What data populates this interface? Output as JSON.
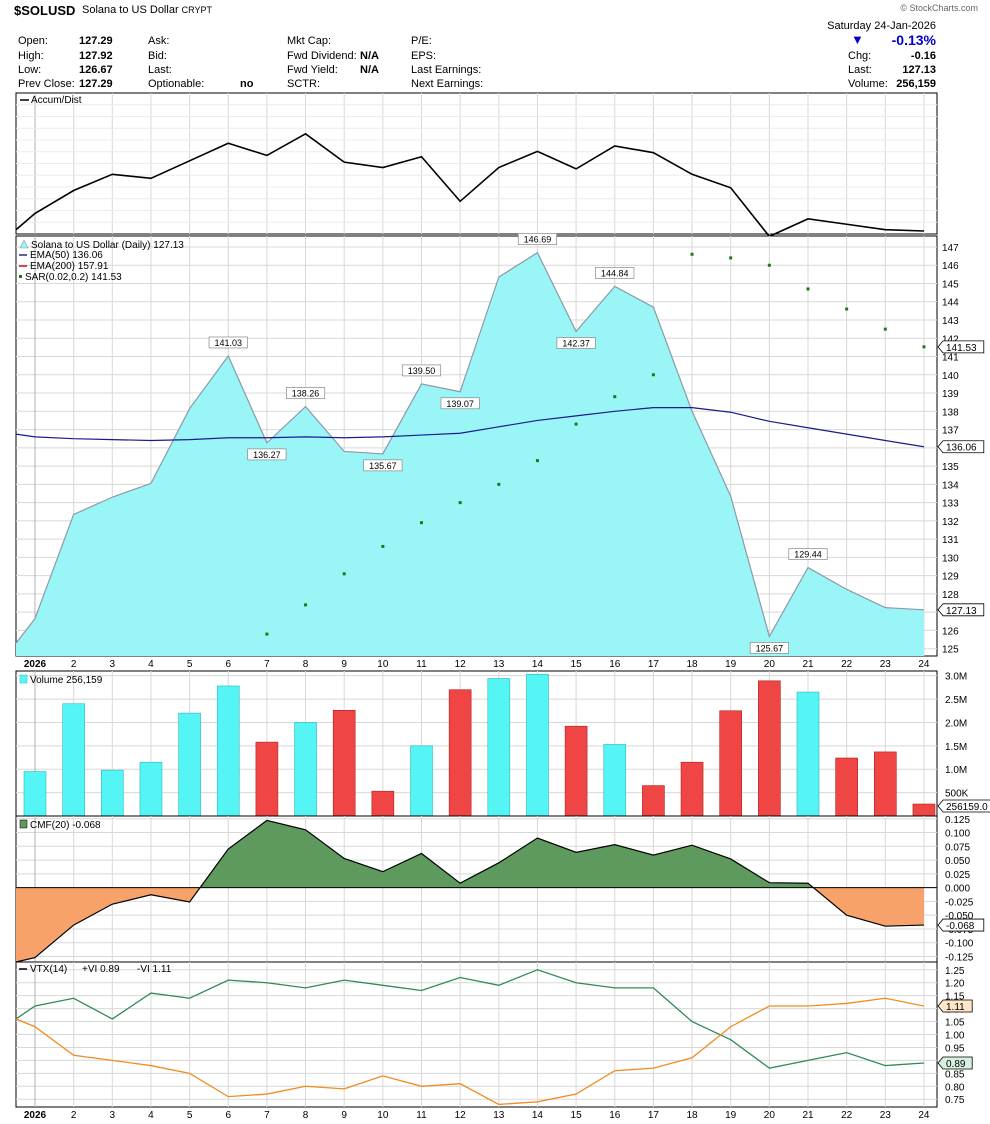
{
  "header": {
    "symbol": "$SOLUSD",
    "name": "Solana to US Dollar",
    "exchange": "CRYPT",
    "credit": "© StockCharts.com",
    "date": "Saturday  24-Jan-2026",
    "change_pct": "-0.13%",
    "stats": {
      "open_label": "Open:",
      "open": "127.29",
      "high_label": "High:",
      "high": "127.92",
      "low_label": "Low:",
      "low": "126.67",
      "prev_label": "Prev Close:",
      "prev": "127.29",
      "ask_label": "Ask:",
      "bid_label": "Bid:",
      "last_label": "Last:",
      "optionable_label": "Optionable:",
      "optionable": "no",
      "mktcap_label": "Mkt Cap:",
      "fwddiv_label": "Fwd Dividend:",
      "fwddiv": "N/A",
      "fwdyield_label": "Fwd Yield:",
      "fwdyield": "N/A",
      "sctr_label": "SCTR:",
      "pe_label": "P/E:",
      "eps_label": "EPS:",
      "lastearn_label": "Last Earnings:",
      "nextearn_label": "Next Earnings:",
      "chg_label": "Chg:",
      "chg": "-0.16",
      "last2_label": "Last:",
      "last2": "127.13",
      "volume_label": "Volume:",
      "volume": "256,159"
    }
  },
  "colors": {
    "area_fill": "#9af5f7",
    "area_line": "#8a9aa8",
    "ema50": "#1a1a8c",
    "ema200": "#cc0000",
    "sar": "#1a7a1a",
    "up_volume": "#55f5f5",
    "down_volume": "#f04545",
    "cmf_pos": "#5e9a5e",
    "cmf_neg": "#f7a26a",
    "vi_plus": "#2e8b57",
    "vi_minus": "#f08c20",
    "grid": "#d8d8d8"
  },
  "chart_data": [
    {
      "type": "line",
      "panel": "accum_dist",
      "title": "Accum/Dist",
      "x": [
        "2026-01-01",
        "2026-01-02",
        "2026-01-03",
        "2026-01-04",
        "2026-01-05",
        "2026-01-06",
        "2026-01-07",
        "2026-01-08",
        "2026-01-09",
        "2026-01-10",
        "2026-01-11",
        "2026-01-12",
        "2026-01-13",
        "2026-01-14",
        "2026-01-15",
        "2026-01-16",
        "2026-01-17",
        "2026-01-18",
        "2026-01-19",
        "2026-01-20",
        "2026-01-21",
        "2026-01-22",
        "2026-01-23",
        "2026-01-24"
      ],
      "values": [
        0.87,
        0.7,
        0.58,
        0.61,
        0.48,
        0.35,
        0.44,
        0.28,
        0.49,
        0.53,
        0.45,
        0.78,
        0.53,
        0.41,
        0.54,
        0.37,
        0.42,
        0.58,
        0.68,
        1.04,
        0.91,
        0.95,
        0.99,
        1.0
      ]
    },
    {
      "type": "area",
      "panel": "price",
      "title": "Solana to US Dollar (Daily) 127.13",
      "x": [
        "2026-01-01",
        "2026-01-02",
        "2026-01-03",
        "2026-01-04",
        "2026-01-05",
        "2026-01-06",
        "2026-01-07",
        "2026-01-08",
        "2026-01-09",
        "2026-01-10",
        "2026-01-11",
        "2026-01-12",
        "2026-01-13",
        "2026-01-14",
        "2026-01-15",
        "2026-01-16",
        "2026-01-17",
        "2026-01-18",
        "2026-01-19",
        "2026-01-20",
        "2026-01-21",
        "2026-01-22",
        "2026-01-23",
        "2026-01-24"
      ],
      "xtick_labels": [
        "2026",
        "2",
        "3",
        "4",
        "5",
        "6",
        "7",
        "8",
        "9",
        "10",
        "11",
        "12",
        "13",
        "14",
        "15",
        "16",
        "17",
        "18",
        "19",
        "20",
        "21",
        "22",
        "23",
        "24"
      ],
      "ylim": [
        124.6,
        147.6
      ],
      "yticks": [
        125,
        126,
        127,
        128,
        129,
        130,
        131,
        132,
        133,
        134,
        135,
        136,
        137,
        138,
        139,
        140,
        141,
        142,
        143,
        144,
        145,
        146,
        147
      ],
      "series": [
        {
          "name": "Solana to US Dollar",
          "values": [
            126.65,
            132.35,
            133.3,
            134.05,
            138.15,
            141.03,
            136.27,
            138.26,
            135.8,
            135.67,
            139.5,
            139.07,
            145.35,
            146.69,
            142.37,
            144.84,
            143.7,
            138.0,
            133.35,
            125.67,
            129.44,
            128.25,
            127.25,
            127.13
          ]
        },
        {
          "name": "EMA(50)",
          "legend": "EMA(50) 136.06",
          "values": [
            136.6,
            136.5,
            136.45,
            136.4,
            136.45,
            136.55,
            136.55,
            136.6,
            136.55,
            136.6,
            136.7,
            136.8,
            137.15,
            137.5,
            137.75,
            138.0,
            138.2,
            138.2,
            137.95,
            137.45,
            137.1,
            136.75,
            136.4,
            136.06
          ]
        },
        {
          "name": "SAR(0.02,0.2)",
          "legend": "SAR(0.02,0.2) 141.53",
          "values": [
            null,
            null,
            null,
            null,
            null,
            null,
            125.8,
            127.4,
            129.1,
            130.6,
            131.9,
            133.0,
            134.0,
            135.3,
            137.3,
            138.8,
            140.0,
            146.6,
            146.4,
            146.0,
            144.7,
            143.6,
            142.5,
            141.53
          ]
        }
      ],
      "ema200_legend": "EMA(200) 157.91",
      "annotations": [
        {
          "x": "2026-01-06",
          "label": "141.03",
          "pos": "above"
        },
        {
          "x": "2026-01-07",
          "label": "136.27",
          "pos": "below"
        },
        {
          "x": "2026-01-08",
          "label": "138.26",
          "pos": "above"
        },
        {
          "x": "2026-01-10",
          "label": "135.67",
          "pos": "below"
        },
        {
          "x": "2026-01-11",
          "label": "139.50",
          "pos": "above"
        },
        {
          "x": "2026-01-12",
          "label": "139.07",
          "pos": "below"
        },
        {
          "x": "2026-01-14",
          "label": "146.69",
          "pos": "above"
        },
        {
          "x": "2026-01-15",
          "label": "142.37",
          "pos": "below"
        },
        {
          "x": "2026-01-16",
          "label": "144.84",
          "pos": "above"
        },
        {
          "x": "2026-01-20",
          "label": "125.67",
          "pos": "below"
        },
        {
          "x": "2026-01-21",
          "label": "129.44",
          "pos": "above"
        }
      ],
      "last_price_tag": "127.13",
      "sar_tag": "141.53",
      "ema_tag": "136.06"
    },
    {
      "type": "bar",
      "panel": "volume",
      "title": "Volume 256,159",
      "x": [
        "2026-01-01",
        "2026-01-02",
        "2026-01-03",
        "2026-01-04",
        "2026-01-05",
        "2026-01-06",
        "2026-01-07",
        "2026-01-08",
        "2026-01-09",
        "2026-01-10",
        "2026-01-11",
        "2026-01-12",
        "2026-01-13",
        "2026-01-14",
        "2026-01-15",
        "2026-01-16",
        "2026-01-17",
        "2026-01-18",
        "2026-01-19",
        "2026-01-20",
        "2026-01-21",
        "2026-01-22",
        "2026-01-23",
        "2026-01-24"
      ],
      "values": [
        950000,
        2400000,
        980000,
        1150000,
        2200000,
        2780000,
        1580000,
        2000000,
        2260000,
        530000,
        1500000,
        2700000,
        2940000,
        3030000,
        1920000,
        1530000,
        650000,
        1150000,
        2250000,
        2890000,
        2650000,
        1240000,
        1370000,
        256159
      ],
      "direction": [
        "up",
        "up",
        "up",
        "up",
        "up",
        "up",
        "down",
        "up",
        "down",
        "down",
        "up",
        "down",
        "up",
        "up",
        "down",
        "up",
        "down",
        "down",
        "down",
        "down",
        "up",
        "down",
        "down",
        "down"
      ],
      "ylim": [
        0,
        3100000
      ],
      "ytick_labels": [
        "3.0M",
        "2.5M",
        "2.0M",
        "1.5M",
        "1.0M",
        "500K"
      ],
      "yticks": [
        3000000,
        2500000,
        2000000,
        1500000,
        1000000,
        500000
      ],
      "last_tag": "256159.0"
    },
    {
      "type": "area",
      "panel": "cmf",
      "title": "CMF(20) -0.068",
      "x": [
        "2026-01-01",
        "2026-01-02",
        "2026-01-03",
        "2026-01-04",
        "2026-01-05",
        "2026-01-06",
        "2026-01-07",
        "2026-01-08",
        "2026-01-09",
        "2026-01-10",
        "2026-01-11",
        "2026-01-12",
        "2026-01-13",
        "2026-01-14",
        "2026-01-15",
        "2026-01-16",
        "2026-01-17",
        "2026-01-18",
        "2026-01-19",
        "2026-01-20",
        "2026-01-21",
        "2026-01-22",
        "2026-01-23",
        "2026-01-24"
      ],
      "values": [
        -0.127,
        -0.068,
        -0.03,
        -0.013,
        -0.026,
        0.07,
        0.122,
        0.105,
        0.053,
        0.029,
        0.062,
        0.008,
        0.045,
        0.09,
        0.064,
        0.078,
        0.059,
        0.077,
        0.052,
        0.009,
        0.008,
        -0.05,
        -0.07,
        -0.068
      ],
      "ylim": [
        -0.135,
        0.13
      ],
      "yticks": [
        0.125,
        0.1,
        0.075,
        0.05,
        0.025,
        0.0,
        -0.025,
        -0.05,
        -0.075,
        -0.1,
        -0.125
      ],
      "ytick_labels": [
        "0.125",
        "0.100",
        "0.075",
        "0.050",
        "0.025",
        "0.000",
        "-0.025",
        "-0.050",
        "-0.075",
        "-0.100",
        "-0.125"
      ],
      "last_tag": "-0.068"
    },
    {
      "type": "line",
      "panel": "vortex",
      "title": "VTX(14)",
      "x": [
        "2026-01-01",
        "2026-01-02",
        "2026-01-03",
        "2026-01-04",
        "2026-01-05",
        "2026-01-06",
        "2026-01-07",
        "2026-01-08",
        "2026-01-09",
        "2026-01-10",
        "2026-01-11",
        "2026-01-12",
        "2026-01-13",
        "2026-01-14",
        "2026-01-15",
        "2026-01-16",
        "2026-01-17",
        "2026-01-18",
        "2026-01-19",
        "2026-01-20",
        "2026-01-21",
        "2026-01-22",
        "2026-01-23",
        "2026-01-24"
      ],
      "series": [
        {
          "name": "+VI",
          "legend": "+VI 0.89",
          "values": [
            1.11,
            1.14,
            1.06,
            1.16,
            1.14,
            1.21,
            1.2,
            1.18,
            1.21,
            1.19,
            1.17,
            1.22,
            1.19,
            1.25,
            1.2,
            1.18,
            1.18,
            1.05,
            0.98,
            0.87,
            0.9,
            0.93,
            0.88,
            0.89
          ]
        },
        {
          "name": "-VI",
          "legend": "-VI 1.11",
          "values": [
            1.03,
            0.92,
            0.9,
            0.88,
            0.85,
            0.76,
            0.77,
            0.8,
            0.79,
            0.84,
            0.8,
            0.81,
            0.73,
            0.74,
            0.77,
            0.86,
            0.87,
            0.91,
            1.03,
            1.11,
            1.11,
            1.12,
            1.14,
            1.11
          ]
        }
      ],
      "ylim": [
        0.72,
        1.28
      ],
      "yticks": [
        1.25,
        1.2,
        1.15,
        1.1,
        1.05,
        1.0,
        0.95,
        0.9,
        0.85,
        0.8,
        0.75
      ],
      "ytick_labels": [
        "1.25",
        "1.20",
        "1.15",
        "1.10",
        "1.05",
        "1.00",
        "0.95",
        "0.90",
        "0.85",
        "0.80",
        "0.75"
      ],
      "xtick_labels": [
        "2026",
        "2",
        "3",
        "4",
        "5",
        "6",
        "7",
        "8",
        "9",
        "10",
        "11",
        "12",
        "13",
        "14",
        "15",
        "16",
        "17",
        "18",
        "19",
        "20",
        "21",
        "22",
        "23",
        "24"
      ],
      "plus_tag": "0.89",
      "minus_tag": "1.11"
    }
  ]
}
